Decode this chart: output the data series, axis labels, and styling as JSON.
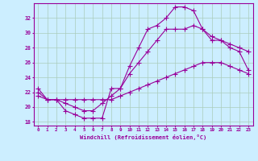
{
  "xlabel": "Windchill (Refroidissement éolien,°C)",
  "background_color": "#cceeff",
  "grid_color": "#aaccbb",
  "line_color": "#990099",
  "marker": "+",
  "markersize": 4,
  "xlim": [
    -0.5,
    23.5
  ],
  "ylim": [
    17.5,
    34.0
  ],
  "yticks": [
    18,
    20,
    22,
    24,
    26,
    28,
    30,
    32
  ],
  "xticks": [
    0,
    1,
    2,
    3,
    4,
    5,
    6,
    7,
    8,
    9,
    10,
    11,
    12,
    13,
    14,
    15,
    16,
    17,
    18,
    19,
    20,
    21,
    22,
    23
  ],
  "series1": [
    22.5,
    21.0,
    21.0,
    19.5,
    19.0,
    18.5,
    18.5,
    18.5,
    22.5,
    22.5,
    25.5,
    28.0,
    30.5,
    31.0,
    32.0,
    33.5,
    33.5,
    33.0,
    30.5,
    29.0,
    29.0,
    28.5,
    28.0,
    27.5
  ],
  "series2": [
    22.0,
    21.0,
    21.0,
    20.5,
    20.0,
    19.5,
    19.5,
    20.5,
    21.5,
    22.5,
    24.5,
    26.0,
    27.5,
    29.0,
    30.5,
    30.5,
    30.5,
    31.0,
    30.5,
    29.5,
    29.0,
    28.0,
    27.5,
    25.0
  ],
  "series3": [
    21.5,
    21.0,
    21.0,
    21.0,
    21.0,
    21.0,
    21.0,
    21.0,
    21.0,
    21.5,
    22.0,
    22.5,
    23.0,
    23.5,
    24.0,
    24.5,
    25.0,
    25.5,
    26.0,
    26.0,
    26.0,
    25.5,
    25.0,
    24.5
  ]
}
